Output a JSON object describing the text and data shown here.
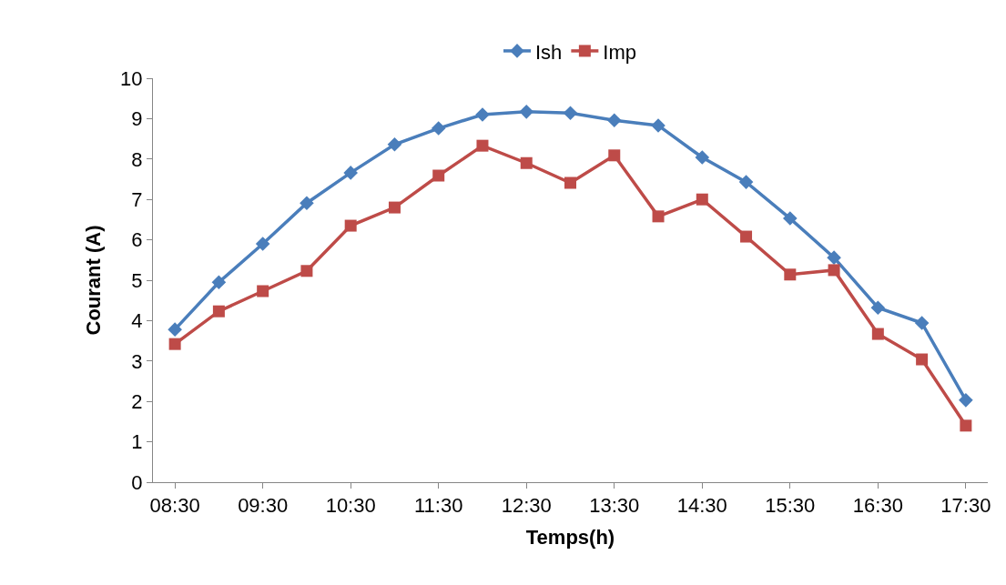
{
  "chart_data": {
    "type": "line",
    "xlabel": "Temps(h)",
    "ylabel": "Courant (A)",
    "categories": [
      "08:30",
      null,
      "09:30",
      null,
      "10:30",
      null,
      "11:30",
      null,
      "12:30",
      null,
      "13:30",
      null,
      "14:30",
      null,
      "15:30",
      null,
      "16:30",
      null,
      "17:30"
    ],
    "series": [
      {
        "name": "Ish",
        "color": "#4a7ebb",
        "marker": "diamond",
        "values": [
          3.78,
          4.95,
          5.9,
          6.91,
          7.66,
          8.36,
          8.76,
          9.1,
          9.17,
          9.14,
          8.96,
          8.83,
          8.04,
          7.43,
          6.53,
          5.56,
          4.32,
          3.94,
          2.03
        ]
      },
      {
        "name": "Imp",
        "color": "#be4b48",
        "marker": "square",
        "values": [
          3.42,
          4.23,
          4.73,
          5.23,
          6.35,
          6.8,
          7.59,
          8.33,
          7.9,
          7.41,
          8.09,
          6.58,
          7.0,
          6.08,
          5.14,
          5.25,
          3.67,
          3.04,
          1.4
        ]
      }
    ],
    "ylim": [
      0,
      10
    ],
    "yticks": [
      0,
      1,
      2,
      3,
      4,
      5,
      6,
      7,
      8,
      9,
      10
    ],
    "legend": "top",
    "line_style": "solid"
  }
}
